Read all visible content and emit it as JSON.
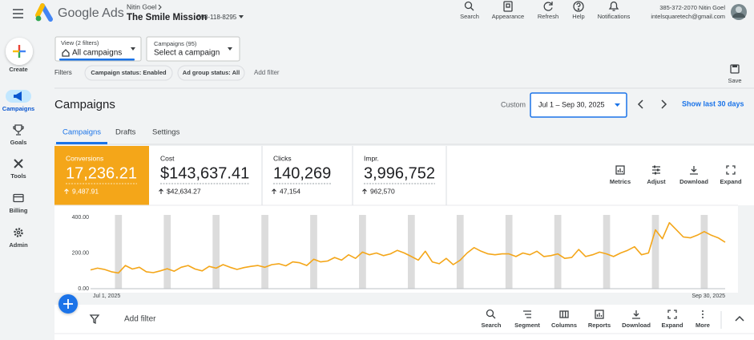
{
  "header": {
    "product": "Google Ads",
    "account_user": "Nitin Goel",
    "account_name": "The Smile Mission",
    "account_id": "598-118-8295",
    "actions": [
      "Search",
      "Appearance",
      "Refresh",
      "Help",
      "Notifications"
    ],
    "user_line": "385-372-2070 Nitin Goel",
    "user_email": "intelsquaretech@gmail.com"
  },
  "sidebar": [
    "Create",
    "Campaigns",
    "Goals",
    "Tools",
    "Billing",
    "Admin"
  ],
  "view": {
    "view_label": "View (2 filters)",
    "view_value": "All campaigns",
    "campaigns_label": "Campaigns (95)",
    "campaigns_value": "Select a campaign",
    "save": "Save"
  },
  "filters": {
    "label": "Filters",
    "chips": [
      "Campaign status: Enabled",
      "Ad group status: All"
    ],
    "add": "Add filter"
  },
  "page": {
    "title": "Campaigns",
    "date_mode": "Custom",
    "date_range": "Jul 1 – Sep 30, 2025",
    "show_last": "Show last 30 days",
    "tabs": [
      "Campaigns",
      "Drafts",
      "Settings"
    ]
  },
  "scorecards": [
    {
      "name": "Conversions",
      "value": "17,236.21",
      "change": "9,487.91"
    },
    {
      "name": "Cost",
      "value": "$143,637.41",
      "change": "$42,634.27"
    },
    {
      "name": "Clicks",
      "value": "140,269",
      "change": "47,154"
    },
    {
      "name": "Impr.",
      "value": "3,996,752",
      "change": "962,570"
    }
  ],
  "chart_tools": [
    "Metrics",
    "Adjust",
    "Download",
    "Expand"
  ],
  "chart_data": {
    "type": "line",
    "categories": [
      "Jul 1, 2025",
      null,
      null,
      null,
      null,
      null,
      null,
      null,
      null,
      null,
      null,
      null,
      null,
      null,
      null,
      null,
      null,
      null,
      null,
      null,
      null,
      null,
      null,
      null,
      null,
      null,
      null,
      null,
      null,
      null,
      null,
      null,
      null,
      null,
      null,
      null,
      null,
      null,
      null,
      null,
      null,
      null,
      null,
      null,
      null,
      null,
      null,
      null,
      null,
      null,
      null,
      null,
      null,
      null,
      null,
      null,
      null,
      null,
      null,
      null,
      null,
      null,
      null,
      null,
      null,
      null,
      null,
      null,
      null,
      null,
      null,
      null,
      null,
      null,
      null,
      null,
      null,
      null,
      null,
      null,
      null,
      null,
      null,
      null,
      null,
      null,
      null,
      null,
      null,
      null,
      null,
      "Sep 30, 2025"
    ],
    "values": [
      105,
      115,
      108,
      95,
      88,
      130,
      110,
      120,
      95,
      90,
      100,
      112,
      98,
      120,
      130,
      110,
      100,
      125,
      115,
      135,
      120,
      108,
      118,
      125,
      130,
      120,
      135,
      140,
      128,
      150,
      145,
      130,
      165,
      150,
      155,
      175,
      160,
      190,
      170,
      205,
      190,
      200,
      185,
      195,
      215,
      200,
      180,
      160,
      210,
      150,
      140,
      170,
      135,
      160,
      200,
      230,
      210,
      195,
      190,
      195,
      195,
      180,
      200,
      190,
      210,
      180,
      185,
      195,
      170,
      175,
      220,
      180,
      190,
      205,
      195,
      180,
      200,
      215,
      235,
      190,
      200,
      330,
      280,
      370,
      330,
      290,
      285,
      300,
      320,
      300,
      285,
      260
    ],
    "color": "#f4a619",
    "ylim": [
      0,
      400
    ],
    "yticks": [
      {
        "value": 0,
        "label": "0.00"
      },
      {
        "value": 200,
        "label": "200.00"
      },
      {
        "value": 400,
        "label": "400.00"
      }
    ],
    "grid": false
  },
  "table_toolbar": {
    "add_filter": "Add filter",
    "tools": [
      "Search",
      "Segment",
      "Columns",
      "Reports",
      "Download",
      "Expand",
      "More"
    ]
  }
}
